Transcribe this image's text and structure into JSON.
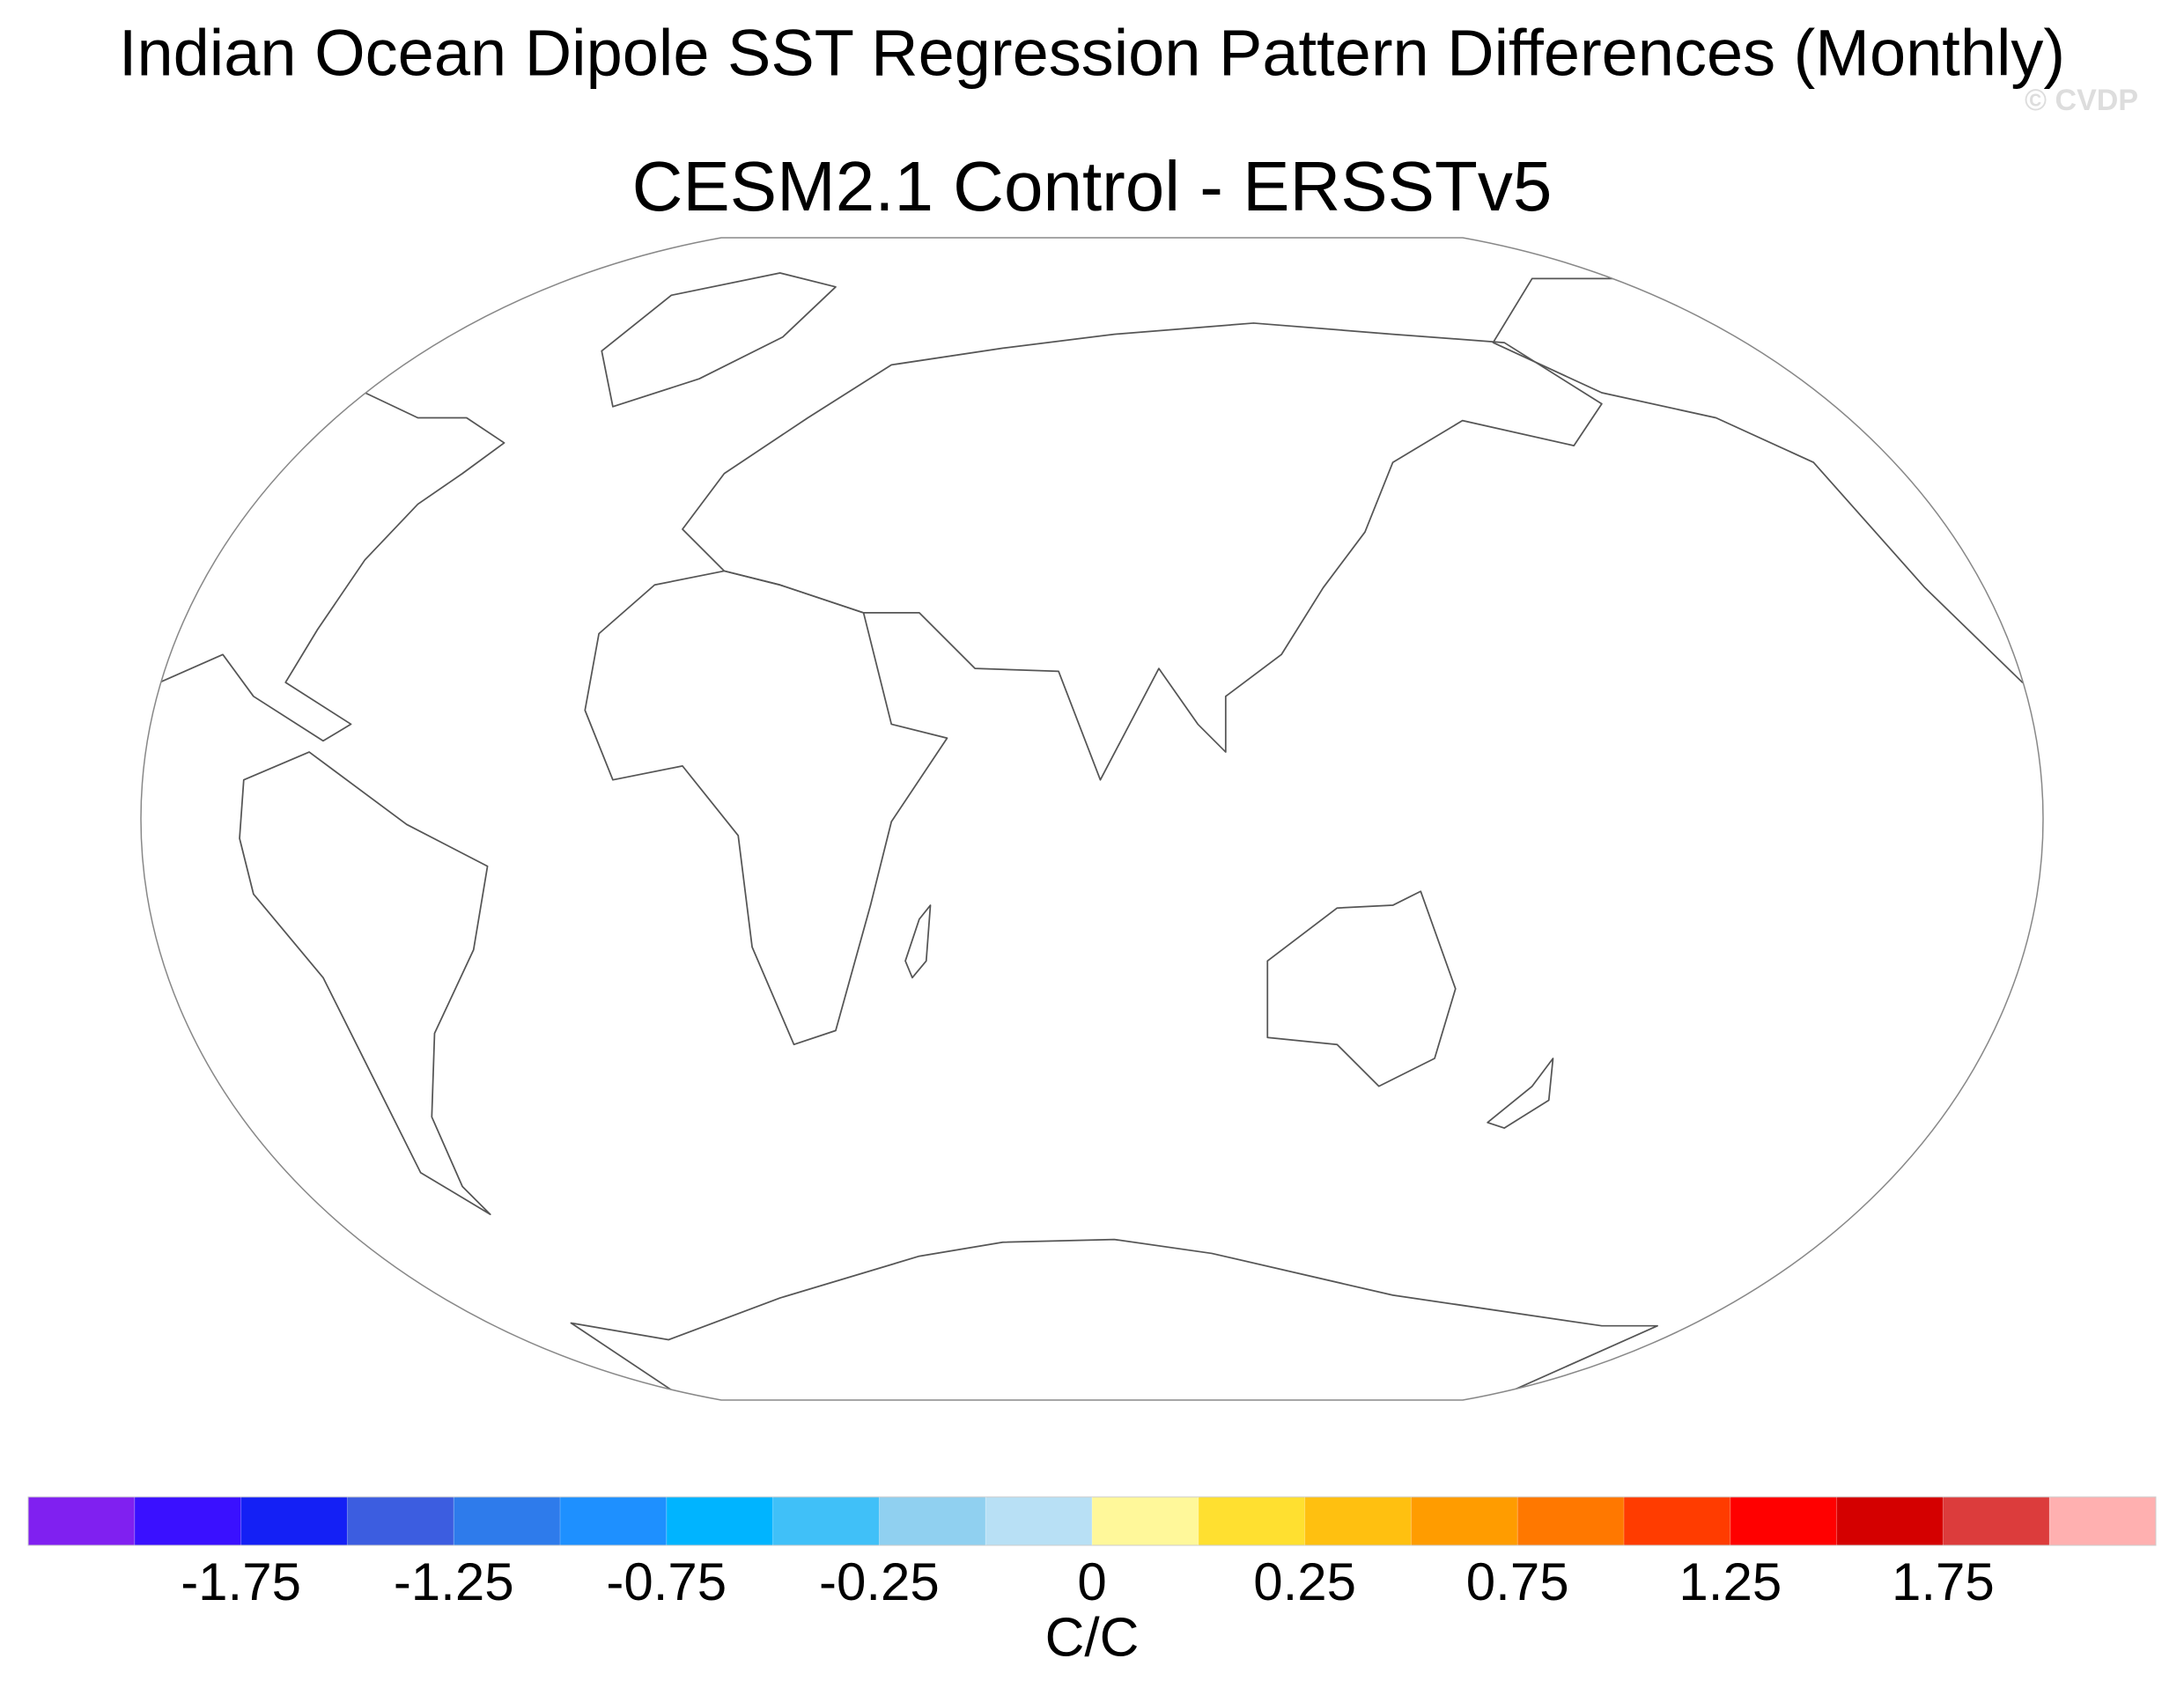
{
  "chart_data": {
    "type": "map",
    "title": "Indian Ocean Dipole SST Regression Pattern Differences (Monthly)",
    "subtitle": "CESM2.1 Control - ERSSTv5",
    "watermark": "© CVDP",
    "colorbar": {
      "label": "C/C",
      "colors": [
        "#8020f0",
        "#3a10ff",
        "#1420f5",
        "#3c5de0",
        "#2e7beb",
        "#1e90ff",
        "#00b4ff",
        "#40c0f8",
        "#90d0f0",
        "#b8e0f5",
        "#fff89a",
        "#ffe030",
        "#ffc010",
        "#ff9c00",
        "#ff7800",
        "#ff3c00",
        "#ff0000",
        "#d40000",
        "#dc3c3c",
        "#ffb0b0"
      ],
      "levels": [
        -2,
        -1.75,
        -1.5,
        -1.25,
        -1,
        -0.75,
        -0.5,
        -0.25,
        -0.1,
        0,
        0.1,
        0.25,
        0.5,
        0.75,
        1,
        1.25,
        1.5,
        1.75,
        2
      ],
      "label_start": 1,
      "label_stride": 2
    }
  }
}
